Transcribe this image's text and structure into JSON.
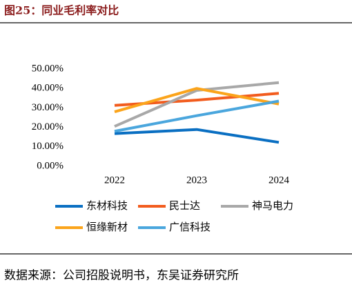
{
  "chart_data": {
    "type": "line",
    "title": "图25：同业毛利率对比",
    "categories": [
      "2022",
      "2023",
      "2024"
    ],
    "series": [
      {
        "name": "东材科技",
        "color": "#0a6fc2",
        "values": [
          16.8,
          18.9,
          12.3
        ]
      },
      {
        "name": "民士达",
        "color": "#f25c1e",
        "values": [
          31.3,
          34.0,
          37.5
        ]
      },
      {
        "name": "神马电力",
        "color": "#a8a8a8",
        "values": [
          20.5,
          39.0,
          43.0
        ]
      },
      {
        "name": "恒缘新材",
        "color": "#fba41b",
        "values": [
          28.0,
          40.0,
          32.0
        ]
      },
      {
        "name": "广信科技",
        "color": "#4aa6dd",
        "values": [
          18.0,
          26.0,
          33.5
        ]
      }
    ],
    "ylim": [
      0,
      50
    ],
    "yticks": [
      {
        "value": 0,
        "label": "0.00%"
      },
      {
        "value": 10,
        "label": "10.00%"
      },
      {
        "value": 20,
        "label": "20.00%"
      },
      {
        "value": 30,
        "label": "30.00%"
      },
      {
        "value": 40,
        "label": "40.00%"
      },
      {
        "value": 50,
        "label": "50.00%"
      }
    ],
    "grid": false,
    "legend": "bottom",
    "source": "数据来源：公司招股说明书，东吴证券研究所"
  }
}
